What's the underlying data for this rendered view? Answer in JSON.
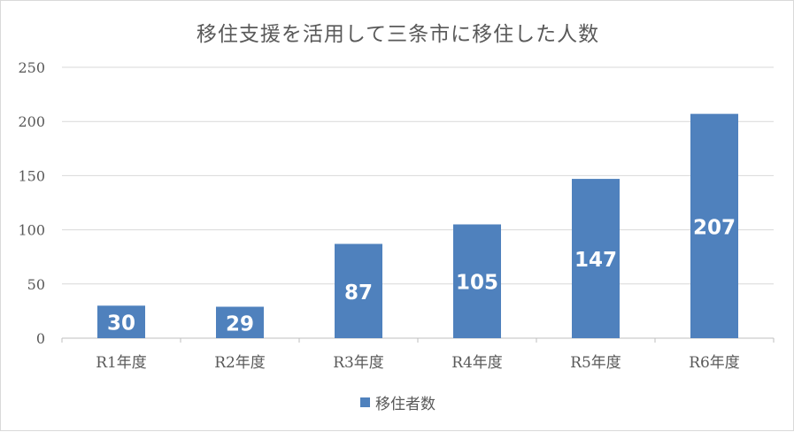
{
  "chart_data": {
    "type": "bar",
    "title": "移住支援を活用して三条市に移住した人数",
    "categories": [
      "R1年度",
      "R2年度",
      "R3年度",
      "R4年度",
      "R5年度",
      "R6年度"
    ],
    "series": [
      {
        "name": "移住者数",
        "values": [
          30,
          29,
          87,
          105,
          147,
          207
        ],
        "color": "#4f81bd"
      }
    ],
    "data_labels": [
      "30",
      "29",
      "87",
      "105",
      "147",
      "207"
    ],
    "ylim": [
      0,
      250
    ],
    "yticks": [
      "0",
      "50",
      "100",
      "150",
      "200",
      "250"
    ],
    "grid": true,
    "legend_position": "bottom"
  }
}
